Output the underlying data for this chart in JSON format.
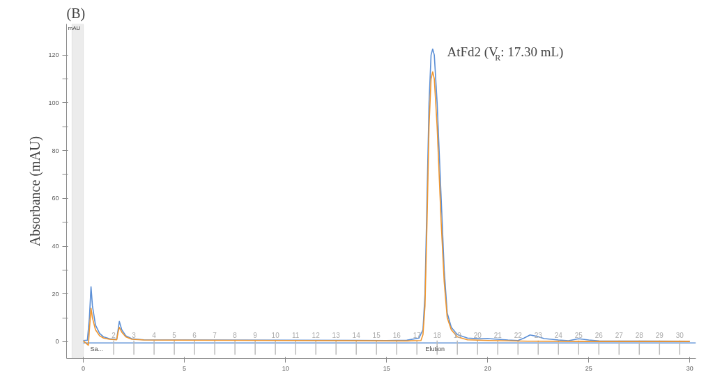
{
  "chart_data": {
    "type": "line",
    "title": "(B)",
    "ylabel": "Absorbance (mAU)",
    "xlim": [
      -0.83,
      30.3
    ],
    "xticks": [
      0,
      5,
      10,
      15,
      20,
      25,
      30
    ],
    "ylim": [
      -7,
      133
    ],
    "yticks": [
      0,
      {
        "value": 10,
        "label": null
      },
      20,
      {
        "value": 30,
        "label": null
      },
      40,
      {
        "value": 50,
        "label": null
      },
      60,
      {
        "value": 70,
        "label": null
      },
      80,
      {
        "value": 90,
        "label": null
      },
      100,
      {
        "value": 110,
        "label": null
      },
      120
    ],
    "grid": false,
    "marker": "none",
    "line_style": "solid",
    "series": [
      {
        "color": "#5b8fd6",
        "x": [
          0,
          0.2,
          0.3,
          0.38,
          0.45,
          0.6,
          0.8,
          1.0,
          1.3,
          1.65,
          1.72,
          1.78,
          1.9,
          2.1,
          2.4,
          3,
          5,
          10,
          15,
          16,
          16.6,
          16.8,
          16.9,
          17.0,
          17.1,
          17.2,
          17.28,
          17.36,
          17.5,
          17.7,
          17.85,
          18.0,
          18.2,
          18.5,
          19,
          19.6,
          20,
          20.5,
          21,
          21.5,
          21.8,
          22.1,
          22.4,
          22.8,
          23.5,
          24,
          24.5,
          25,
          25.5,
          30
        ],
        "values": [
          0.5,
          0.6,
          10,
          23,
          15,
          7,
          3.5,
          2,
          1.2,
          1,
          5,
          8.5,
          5,
          2.5,
          1.2,
          0.8,
          0.7,
          0.6,
          0.5,
          0.6,
          1.5,
          5,
          20,
          60,
          100,
          120,
          122.5,
          120,
          100,
          60,
          30,
          12,
          6,
          3,
          1.5,
          1.2,
          1.3,
          1,
          0.7,
          0.5,
          1.5,
          2.8,
          2.3,
          1.3,
          0.7,
          0.4,
          1.2,
          0.7,
          0.3,
          0.2
        ]
      },
      {
        "color": "#f0962e",
        "x": [
          0,
          0.25,
          0.3,
          0.38,
          0.45,
          0.6,
          0.8,
          1.0,
          1.3,
          1.65,
          1.72,
          1.78,
          1.9,
          2.1,
          2.4,
          3,
          10,
          16,
          16.7,
          16.8,
          16.9,
          17.0,
          17.1,
          17.2,
          17.28,
          17.36,
          17.5,
          17.7,
          17.85,
          18.0,
          18.2,
          18.5,
          19,
          20,
          22,
          25,
          30
        ],
        "values": [
          0.3,
          -1.5,
          5,
          14,
          10,
          5,
          2.5,
          1.5,
          1,
          0.8,
          4,
          6,
          4,
          2,
          1,
          0.7,
          0.5,
          0.3,
          0.5,
          3,
          15,
          50,
          90,
          110,
          113,
          110,
          90,
          50,
          25,
          10,
          5,
          2,
          0.8,
          0.5,
          0.2,
          0.1,
          0.1
        ]
      }
    ],
    "bands": [
      {
        "axis": "x",
        "from": -0.56,
        "to": 0,
        "color": "#ececec"
      }
    ],
    "ref_lines": [
      {
        "axis": "y",
        "value": -0.5,
        "color": "#5b8fd6"
      },
      {
        "axis": "x",
        "value": 1.5,
        "label": "2"
      },
      {
        "axis": "x",
        "value": 2.5,
        "label": "3"
      },
      {
        "axis": "x",
        "value": 3.5,
        "label": "4"
      },
      {
        "axis": "x",
        "value": 4.5,
        "label": "5"
      },
      {
        "axis": "x",
        "value": 5.5,
        "label": "6"
      },
      {
        "axis": "x",
        "value": 6.5,
        "label": "7"
      },
      {
        "axis": "x",
        "value": 7.5,
        "label": "8"
      },
      {
        "axis": "x",
        "value": 8.5,
        "label": "9"
      },
      {
        "axis": "x",
        "value": 9.5,
        "label": "10"
      },
      {
        "axis": "x",
        "value": 10.5,
        "label": "11"
      },
      {
        "axis": "x",
        "value": 11.5,
        "label": "12"
      },
      {
        "axis": "x",
        "value": 12.5,
        "label": "13"
      },
      {
        "axis": "x",
        "value": 13.5,
        "label": "14"
      },
      {
        "axis": "x",
        "value": 14.5,
        "label": "15"
      },
      {
        "axis": "x",
        "value": 15.5,
        "label": "16"
      },
      {
        "axis": "x",
        "value": 16.5,
        "label": "17"
      },
      {
        "axis": "x",
        "value": 17.5,
        "label": "18"
      },
      {
        "axis": "x",
        "value": 18.5,
        "label": "19"
      },
      {
        "axis": "x",
        "value": 19.5,
        "label": "20"
      },
      {
        "axis": "x",
        "value": 20.5,
        "label": "21"
      },
      {
        "axis": "x",
        "value": 21.5,
        "label": "22"
      },
      {
        "axis": "x",
        "value": 22.5,
        "label": "23"
      },
      {
        "axis": "x",
        "value": 23.5,
        "label": "24"
      },
      {
        "axis": "x",
        "value": 24.5,
        "label": "25"
      },
      {
        "axis": "x",
        "value": 25.5,
        "label": "26"
      },
      {
        "axis": "x",
        "value": 26.5,
        "label": "27"
      },
      {
        "axis": "x",
        "value": 27.5,
        "label": "28"
      },
      {
        "axis": "x",
        "value": 28.5,
        "label": "29"
      },
      {
        "axis": "x",
        "value": 29.5,
        "label": "30"
      }
    ],
    "annotations": [
      "mAU",
      {
        "text": "AtFd2 (V$_{R}$: 17.30 mL)",
        "x": 17.3,
        "y": 122.5
      },
      {
        "text": "Sa...",
        "x": 0,
        "y": -3
      },
      {
        "text": "Elution",
        "x": 17.4,
        "y": -3
      }
    ]
  }
}
